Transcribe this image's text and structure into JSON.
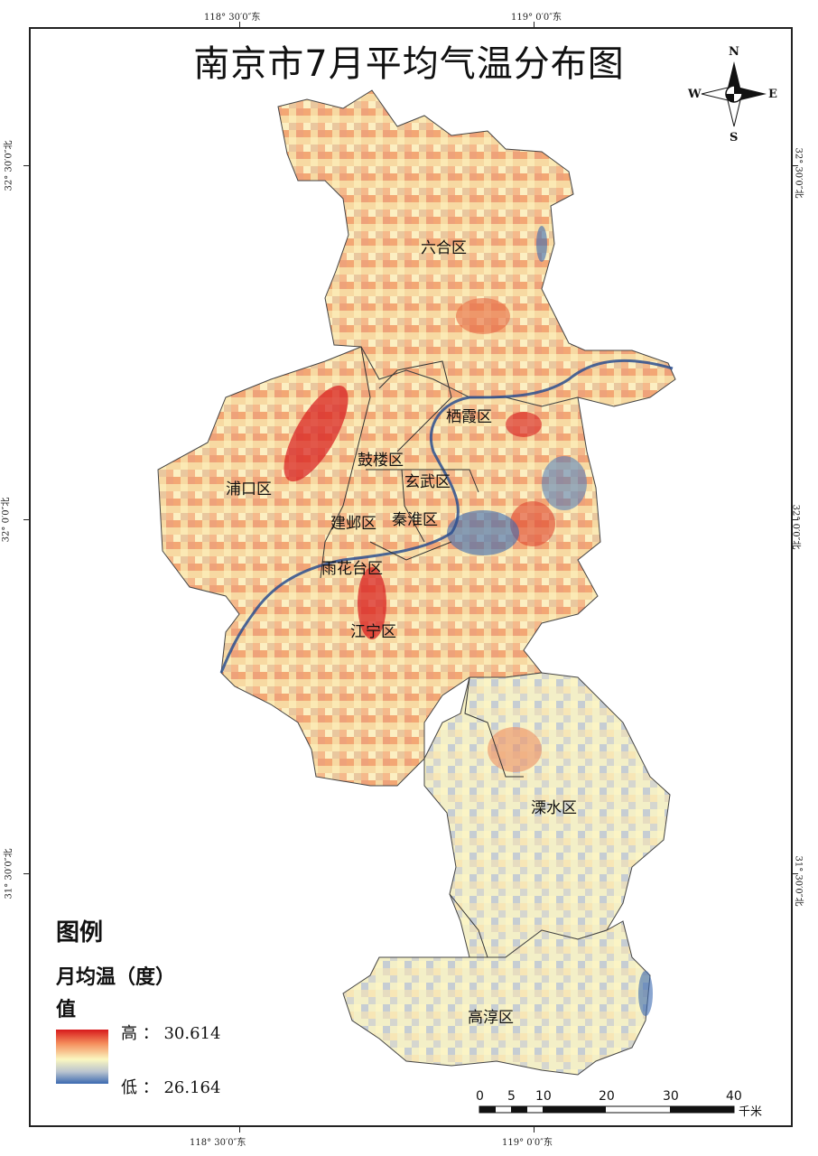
{
  "map": {
    "title": "南京市7月平均气温分布图",
    "top_coords": [
      "118° 30′0″东",
      "119° 0′0″东"
    ],
    "bottom_coords": [
      "118° 30′0″东",
      "119° 0′0″东"
    ],
    "left_coords": [
      "32° 30′0″北",
      "32° 0′0″北",
      "31° 30′0″北"
    ],
    "right_coords": [
      "32° 30′0″北",
      "32° 0′0″北",
      "31° 30′0″北"
    ],
    "districts": {
      "liuhe": "六合区",
      "qixia": "栖霞区",
      "gulou": "鼓楼区",
      "xuanwu": "玄武区",
      "pukou": "浦口区",
      "jianye": "建邺区",
      "qinhuai": "秦淮区",
      "yuhuatai": "雨花台区",
      "jiangning": "江宁区",
      "lishui": "溧水区",
      "gaochun": "高淳区"
    },
    "colors": {
      "high": "#d7191c",
      "mid_high": "#f48b5a",
      "mid": "#fbf7c0",
      "mid_low": "#b9c3cf",
      "low": "#3b69b0",
      "boundary": "#333333",
      "river": "#2c4f8f"
    }
  },
  "compass": {
    "n": "N",
    "s": "S",
    "e": "E",
    "w": "W"
  },
  "legend": {
    "title": "图例",
    "subtitle": "月均温（度）",
    "value_label": "值",
    "high": "高 ： 30.614",
    "low": "低 ： 26.164"
  },
  "scale_bar": {
    "labels": [
      "0",
      "5",
      "10",
      "20",
      "30",
      "40"
    ],
    "unit": "千米"
  }
}
